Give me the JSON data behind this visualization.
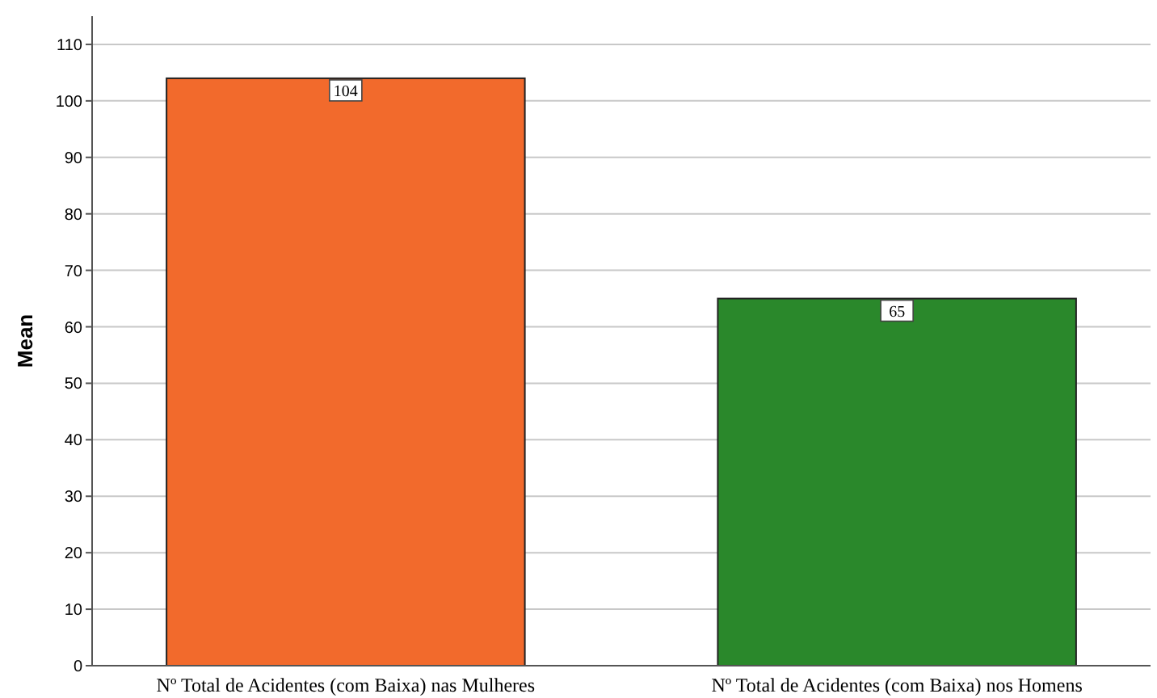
{
  "chart_data": {
    "type": "bar",
    "ylabel": "Mean",
    "categories": [
      "Nº Total de Acidentes (com Baixa) nas Mulheres",
      "Nº Total de Acidentes (com Baixa) nos Homens"
    ],
    "values": [
      104,
      65
    ],
    "colors": [
      "#f26a2c",
      "#2a882b"
    ],
    "ylim": [
      0,
      115
    ],
    "yticks": [
      0,
      10,
      20,
      30,
      40,
      50,
      60,
      70,
      80,
      90,
      100,
      110
    ],
    "grid": "y",
    "data_labels": true
  }
}
